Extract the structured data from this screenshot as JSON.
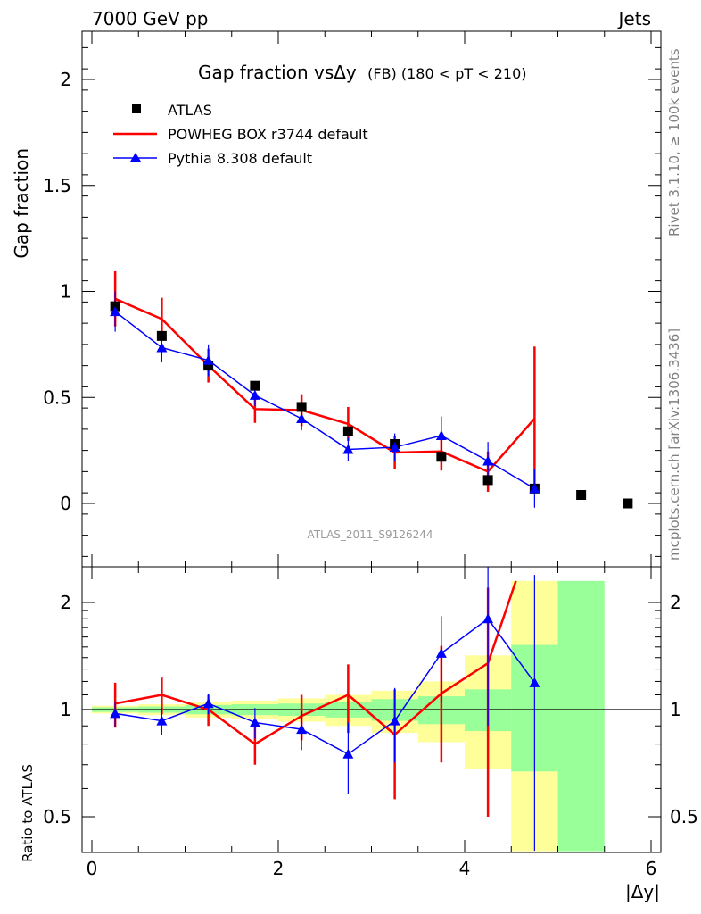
{
  "header": {
    "left_label": "7000 GeV pp",
    "right_label": "Jets"
  },
  "side_labels": {
    "rivet": "Rivet 3.1.10, ≥ 100k events",
    "mcplots": "mcplots.cern.ch [arXiv:1306.3436]"
  },
  "watermark": "ATLAS_2011_S9126244",
  "chart_data": [
    {
      "type": "scatter",
      "title": "Gap fraction vsΔy",
      "subtitle": "(FB) (180 < pT < 210)",
      "xlabel": "|Δy|",
      "ylabel": "Gap fraction",
      "xlim": [
        -0.1,
        6.1
      ],
      "ylim": [
        -0.3,
        2.25
      ],
      "x_ticks": [
        "0",
        "2",
        "4",
        "6"
      ],
      "y_ticks": [
        "0",
        "0.5",
        "1",
        "1.5",
        "2"
      ],
      "x": [
        0.25,
        0.75,
        1.25,
        1.75,
        2.25,
        2.75,
        3.25,
        3.75,
        4.25,
        4.75,
        5.25,
        5.75
      ],
      "series": [
        {
          "name": "ATLAS",
          "style": "markers",
          "color": "#000000",
          "values": [
            0.93,
            0.79,
            0.65,
            0.555,
            0.455,
            0.34,
            0.28,
            0.22,
            0.11,
            0.07,
            0.04,
            0.0
          ]
        },
        {
          "name": "POWHEG BOX r3744 default",
          "style": "line",
          "color": "#ff0000",
          "values": [
            0.965,
            0.87,
            0.65,
            0.445,
            0.44,
            0.375,
            0.24,
            0.245,
            0.15,
            0.4
          ],
          "err": [
            0.13,
            0.1,
            0.08,
            0.065,
            0.075,
            0.08,
            0.08,
            0.09,
            0.095,
            0.34
          ]
        },
        {
          "name": "Pythia 8.308 default",
          "style": "line-triangle",
          "color": "#0000ff",
          "values": [
            0.905,
            0.735,
            0.675,
            0.51,
            0.4,
            0.255,
            0.265,
            0.32,
            0.2,
            0.07
          ],
          "err": [
            0.095,
            0.07,
            0.075,
            0.05,
            0.055,
            0.055,
            0.065,
            0.09,
            0.09,
            0.09
          ]
        }
      ]
    },
    {
      "type": "line",
      "ylabel": "Ratio to ATLAS",
      "xlabel": "|Δy|",
      "log_y": true,
      "xlim": [
        -0.1,
        6.1
      ],
      "ylim": [
        0.4,
        2.3
      ],
      "y_ticks": [
        "0.5",
        "1",
        "2"
      ],
      "reference_line": 1,
      "uncertainty_bands": {
        "x_edges": [
          0,
          0.5,
          1,
          1.5,
          2,
          2.5,
          3,
          3.5,
          4,
          4.5,
          5,
          5.5
        ],
        "green": [
          [
            0.985,
            1.015
          ],
          [
            0.98,
            1.02
          ],
          [
            0.97,
            1.03
          ],
          [
            0.965,
            1.035
          ],
          [
            0.96,
            1.04
          ],
          [
            0.95,
            1.05
          ],
          [
            0.93,
            1.07
          ],
          [
            0.91,
            1.09
          ],
          [
            0.87,
            1.14
          ],
          [
            0.67,
            1.52
          ],
          [
            0.4,
            2.3
          ]
        ],
        "yellow": [
          [
            0.975,
            1.025
          ],
          [
            0.965,
            1.035
          ],
          [
            0.95,
            1.05
          ],
          [
            0.94,
            1.06
          ],
          [
            0.925,
            1.075
          ],
          [
            0.9,
            1.1
          ],
          [
            0.86,
            1.13
          ],
          [
            0.81,
            1.2
          ],
          [
            0.68,
            1.42
          ],
          [
            0.4,
            2.3
          ],
          null
        ]
      },
      "series": [
        {
          "name": "POWHEG BOX r3744 default",
          "color": "#ff0000",
          "x": [
            0.25,
            0.75,
            1.25,
            1.75,
            2.25,
            2.75,
            3.25,
            3.75,
            4.25,
            4.55
          ],
          "values": [
            1.04,
            1.1,
            1.0,
            0.8,
            0.96,
            1.1,
            0.85,
            1.11,
            1.35,
            2.3
          ],
          "err": [
            0.15,
            0.13,
            0.1,
            0.1,
            0.14,
            0.24,
            0.29,
            0.4,
            0.85,
            0
          ],
          "show_err": [
            true,
            true,
            true,
            true,
            true,
            true,
            true,
            true,
            true,
            false
          ]
        },
        {
          "name": "Pythia 8.308 default",
          "color": "#0000ff",
          "x": [
            0.25,
            0.75,
            1.25,
            1.75,
            2.25,
            2.75,
            3.25,
            3.75,
            4.25,
            4.75
          ],
          "values": [
            0.975,
            0.93,
            1.04,
            0.92,
            0.88,
            0.75,
            0.93,
            1.44,
            1.8,
            1.19
          ],
          "err": [
            0.08,
            0.08,
            0.07,
            0.09,
            0.11,
            0.17,
            0.22,
            0.39,
            0.9,
            1.2
          ],
          "show_err": [
            true,
            true,
            true,
            true,
            true,
            true,
            true,
            true,
            true,
            true
          ]
        }
      ]
    }
  ]
}
